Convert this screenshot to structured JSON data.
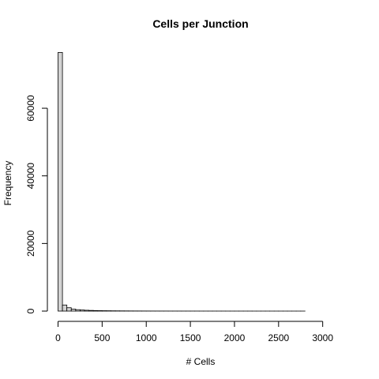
{
  "chart_data": {
    "type": "bar",
    "title": "Cells per Junction",
    "xlabel": "# Cells",
    "ylabel": "Frequency",
    "xlim": [
      0,
      3240
    ],
    "ylim": [
      0,
      78000
    ],
    "x_ticks": [
      0,
      500,
      1000,
      1500,
      2000,
      2500,
      3000
    ],
    "x_tick_labels": [
      "0",
      "500",
      "1000",
      "1500",
      "2000",
      "2500",
      "3000"
    ],
    "y_ticks": [
      0,
      20000,
      40000,
      60000
    ],
    "y_tick_labels": [
      "0",
      "20000",
      "40000",
      "60000"
    ],
    "bin_width": 50,
    "bin_start": 0,
    "counts": [
      76500,
      1800,
      1000,
      600,
      420,
      320,
      250,
      200,
      160,
      130,
      110,
      95,
      80,
      70,
      60,
      52,
      45,
      40,
      35,
      30,
      27,
      24,
      21,
      19,
      17,
      15,
      14,
      13,
      12,
      11,
      10,
      9,
      8,
      8,
      7,
      7,
      6,
      6,
      5,
      5,
      5,
      4,
      4,
      4,
      3,
      3,
      3,
      3,
      3,
      2,
      2,
      2,
      2,
      2,
      2,
      2,
      1,
      1,
      1,
      1,
      1,
      1,
      1,
      1,
      1
    ],
    "bar_fill": "#d3d3d3",
    "bar_stroke": "#000000",
    "grid": false,
    "legend": "none"
  }
}
